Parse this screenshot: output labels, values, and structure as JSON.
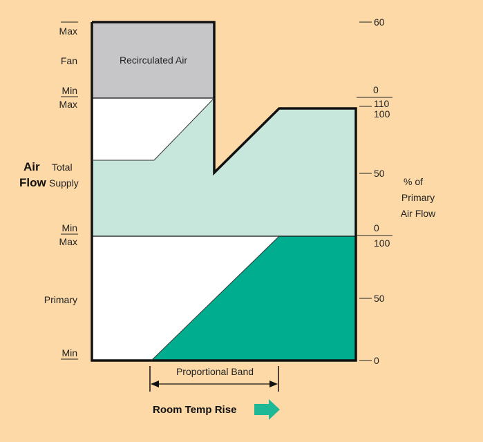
{
  "colors": {
    "background": "#fcd9a6",
    "recirculated": "#c6c6c8",
    "total_supply": "#c7e6dc",
    "primary": "#00ae8f",
    "blank": "#ffffff",
    "outline": "#111111",
    "arrow": "#1fb896"
  },
  "left_axis": {
    "title_air": "Air",
    "title_flow": "Flow",
    "fan": {
      "max": "Max",
      "label": "Fan",
      "min": "Min"
    },
    "total_supply": {
      "max": "Max",
      "label_total": "Total",
      "label_supply": "Supply",
      "min": "Min"
    },
    "primary": {
      "max": "Max",
      "label": "Primary",
      "min": "Min"
    }
  },
  "right_axis": {
    "tick_60": "60",
    "tick_0_top": "0",
    "tick_110": "110",
    "tick_100_top": "100",
    "tick_50_top": "50",
    "tick_0_mid": "0",
    "tick_100_mid": "100",
    "tick_50_bottom": "50",
    "tick_0_bottom": "0",
    "title_line1": "% of",
    "title_line2": "Primary",
    "title_line3": "Air Flow"
  },
  "regions": {
    "recirculated_label": "Recirculated Air"
  },
  "bottom": {
    "proportional_band": "Proportional Band",
    "room_temp_rise": "Room Temp Rise",
    "arrow_icon": "right-arrow-icon"
  }
}
